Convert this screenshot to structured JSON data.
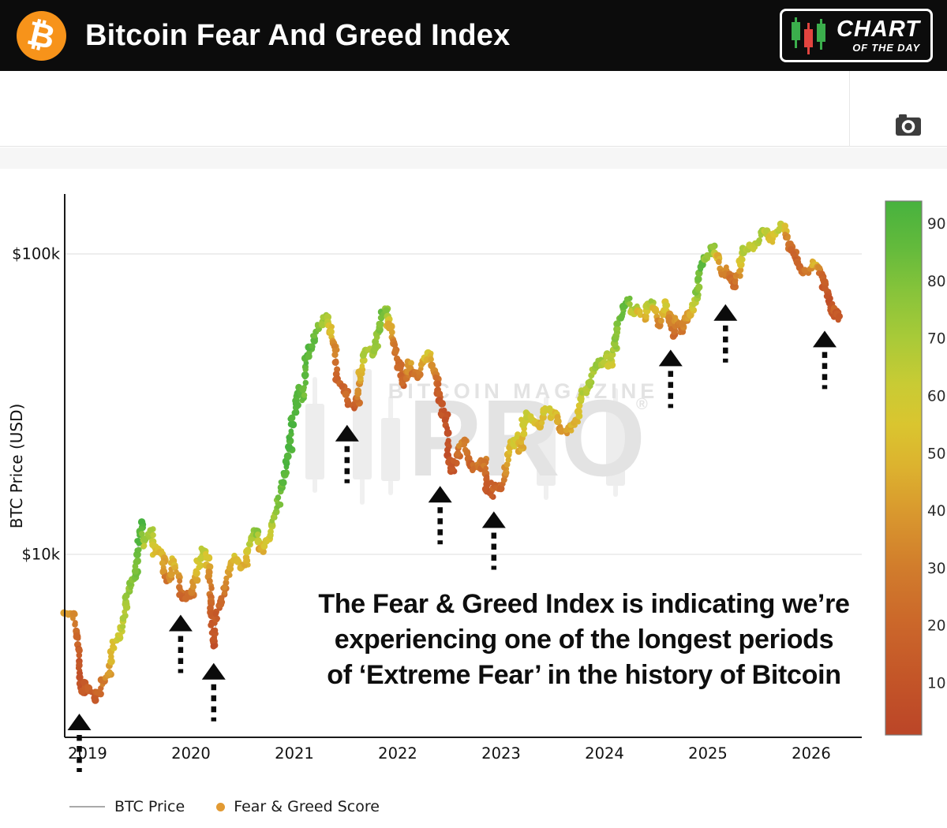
{
  "header": {
    "logo_symbol": "₿",
    "title": "Bitcoin Fear And Greed Index",
    "badge": {
      "line1": "CHART",
      "line2": "OF THE DAY"
    }
  },
  "colors": {
    "bitcoin_orange": "#f7931a",
    "header_bg": "#0c0c0c",
    "badge_candle_green": "#3bae4c",
    "badge_candle_red": "#e2443f",
    "arrow_black": "#0b0b0b",
    "axis": "#1a1a1a",
    "grid": "#e9e9e9",
    "price_line": "#b5b5b5",
    "watermark": "#e3e3e3",
    "camera_icon": "#3d3d3d"
  },
  "chart_data": {
    "type": "scatter",
    "title": "",
    "ylabel": "BTC Price (USD)",
    "yscale": "log",
    "grid": true,
    "y_ticks": [
      {
        "label": "$100k",
        "value": 100
      },
      {
        "label": "$10k",
        "value": 10
      }
    ],
    "x_ticks": [
      "2019",
      "2020",
      "2021",
      "2022",
      "2023",
      "2024",
      "2025",
      "2026"
    ],
    "x_range_years": [
      2018.78,
      2026.49
    ],
    "series_name": "BTC Price colored by Fear & Greed Score",
    "price_unit": "thousand USD",
    "points": [
      [
        2018.78,
        6.45,
        45
      ],
      [
        2018.82,
        6.4,
        42
      ],
      [
        2018.86,
        6.3,
        38
      ],
      [
        2018.89,
        5.5,
        20
      ],
      [
        2018.92,
        4.2,
        10
      ],
      [
        2018.95,
        3.45,
        9
      ],
      [
        2018.98,
        3.75,
        16
      ],
      [
        2019.02,
        3.55,
        18
      ],
      [
        2019.06,
        3.35,
        13
      ],
      [
        2019.1,
        3.5,
        22
      ],
      [
        2019.15,
        3.85,
        30
      ],
      [
        2019.2,
        3.95,
        38
      ],
      [
        2019.25,
        5.05,
        55
      ],
      [
        2019.3,
        5.3,
        60
      ],
      [
        2019.34,
        5.75,
        64
      ],
      [
        2019.38,
        7.2,
        72
      ],
      [
        2019.42,
        7.95,
        76
      ],
      [
        2019.46,
        8.6,
        80
      ],
      [
        2019.49,
        10.8,
        88
      ],
      [
        2019.52,
        12.8,
        92
      ],
      [
        2019.55,
        10.8,
        68
      ],
      [
        2019.58,
        11.6,
        72
      ],
      [
        2019.62,
        11.9,
        70
      ],
      [
        2019.65,
        10.1,
        52
      ],
      [
        2019.69,
        10.4,
        55
      ],
      [
        2019.73,
        9.6,
        44
      ],
      [
        2019.76,
        8.2,
        28
      ],
      [
        2019.8,
        8.35,
        35
      ],
      [
        2019.83,
        9.5,
        52
      ],
      [
        2019.87,
        8.6,
        40
      ],
      [
        2019.9,
        7.4,
        24
      ],
      [
        2019.93,
        7.15,
        20
      ],
      [
        2019.97,
        7.25,
        24
      ],
      [
        2020.0,
        7.2,
        26
      ],
      [
        2020.04,
        8.3,
        45
      ],
      [
        2020.08,
        9.4,
        60
      ],
      [
        2020.12,
        10.2,
        62
      ],
      [
        2020.15,
        9.6,
        55
      ],
      [
        2020.18,
        8.7,
        40
      ],
      [
        2020.2,
        6.2,
        12
      ],
      [
        2020.22,
        5.0,
        8
      ],
      [
        2020.25,
        6.4,
        14
      ],
      [
        2020.29,
        6.9,
        20
      ],
      [
        2020.33,
        7.6,
        28
      ],
      [
        2020.37,
        8.9,
        45
      ],
      [
        2020.41,
        9.7,
        54
      ],
      [
        2020.45,
        9.4,
        50
      ],
      [
        2020.49,
        9.15,
        44
      ],
      [
        2020.53,
        9.25,
        46
      ],
      [
        2020.57,
        11.0,
        66
      ],
      [
        2020.61,
        11.7,
        74
      ],
      [
        2020.64,
        11.9,
        76
      ],
      [
        2020.68,
        10.4,
        45
      ],
      [
        2020.72,
        10.75,
        52
      ],
      [
        2020.76,
        11.6,
        62
      ],
      [
        2020.8,
        13.1,
        72
      ],
      [
        2020.84,
        15.0,
        80
      ],
      [
        2020.88,
        17.0,
        86
      ],
      [
        2020.91,
        18.8,
        90
      ],
      [
        2020.95,
        22.8,
        93
      ],
      [
        2020.98,
        27.5,
        94
      ],
      [
        2021.02,
        32.0,
        93
      ],
      [
        2021.05,
        35.5,
        90
      ],
      [
        2021.08,
        33.0,
        84
      ],
      [
        2021.12,
        45.0,
        89
      ],
      [
        2021.15,
        48.5,
        90
      ],
      [
        2021.19,
        52.0,
        86
      ],
      [
        2021.23,
        57.0,
        80
      ],
      [
        2021.27,
        58.5,
        73
      ],
      [
        2021.3,
        62.5,
        74
      ],
      [
        2021.33,
        59.5,
        62
      ],
      [
        2021.36,
        55.0,
        50
      ],
      [
        2021.39,
        49.0,
        35
      ],
      [
        2021.42,
        38.0,
        18
      ],
      [
        2021.46,
        36.0,
        20
      ],
      [
        2021.5,
        34.0,
        22
      ],
      [
        2021.54,
        32.0,
        18
      ],
      [
        2021.58,
        31.0,
        15
      ],
      [
        2021.61,
        32.5,
        24
      ],
      [
        2021.64,
        40.0,
        50
      ],
      [
        2021.67,
        46.0,
        68
      ],
      [
        2021.71,
        47.5,
        72
      ],
      [
        2021.75,
        47.0,
        70
      ],
      [
        2021.79,
        49.5,
        74
      ],
      [
        2021.82,
        57.0,
        80
      ],
      [
        2021.86,
        62.5,
        82
      ],
      [
        2021.89,
        64.5,
        76
      ],
      [
        2021.92,
        58.0,
        45
      ],
      [
        2021.95,
        50.5,
        30
      ],
      [
        2021.98,
        47.0,
        26
      ],
      [
        2022.02,
        42.5,
        22
      ],
      [
        2022.05,
        37.0,
        19
      ],
      [
        2022.09,
        40.0,
        30
      ],
      [
        2022.12,
        43.5,
        40
      ],
      [
        2022.16,
        39.5,
        26
      ],
      [
        2022.2,
        39.0,
        28
      ],
      [
        2022.24,
        43.0,
        45
      ],
      [
        2022.28,
        46.5,
        55
      ],
      [
        2022.31,
        45.5,
        50
      ],
      [
        2022.34,
        41.0,
        32
      ],
      [
        2022.37,
        38.5,
        26
      ],
      [
        2022.4,
        34.5,
        15
      ],
      [
        2022.43,
        29.5,
        10
      ],
      [
        2022.46,
        29.8,
        12
      ],
      [
        2022.49,
        21.5,
        8
      ],
      [
        2022.52,
        19.0,
        9
      ],
      [
        2022.55,
        20.5,
        14
      ],
      [
        2022.58,
        21.8,
        22
      ],
      [
        2022.61,
        23.5,
        32
      ],
      [
        2022.64,
        23.8,
        33
      ],
      [
        2022.67,
        21.5,
        24
      ],
      [
        2022.7,
        19.8,
        20
      ],
      [
        2022.74,
        19.5,
        22
      ],
      [
        2022.78,
        20.2,
        28
      ],
      [
        2022.81,
        19.5,
        26
      ],
      [
        2022.84,
        20.5,
        30
      ],
      [
        2022.87,
        16.5,
        10
      ],
      [
        2022.9,
        15.8,
        12
      ],
      [
        2022.93,
        16.9,
        18
      ],
      [
        2022.97,
        16.6,
        20
      ],
      [
        2023.0,
        16.7,
        22
      ],
      [
        2023.04,
        19.0,
        38
      ],
      [
        2023.08,
        22.8,
        52
      ],
      [
        2023.11,
        23.2,
        55
      ],
      [
        2023.15,
        24.6,
        58
      ],
      [
        2023.19,
        22.4,
        44
      ],
      [
        2023.22,
        27.5,
        60
      ],
      [
        2023.26,
        29.0,
        62
      ],
      [
        2023.3,
        28.0,
        56
      ],
      [
        2023.34,
        27.5,
        52
      ],
      [
        2023.38,
        26.7,
        48
      ],
      [
        2023.42,
        30.4,
        60
      ],
      [
        2023.46,
        30.2,
        58
      ],
      [
        2023.5,
        29.3,
        54
      ],
      [
        2023.54,
        29.2,
        52
      ],
      [
        2023.58,
        26.1,
        38
      ],
      [
        2023.62,
        25.9,
        40
      ],
      [
        2023.66,
        26.5,
        44
      ],
      [
        2023.7,
        27.4,
        47
      ],
      [
        2023.74,
        28.2,
        50
      ],
      [
        2023.78,
        34.2,
        66
      ],
      [
        2023.82,
        35.0,
        68
      ],
      [
        2023.86,
        37.2,
        70
      ],
      [
        2023.9,
        42.0,
        72
      ],
      [
        2023.94,
        43.8,
        72
      ],
      [
        2023.98,
        42.6,
        68
      ],
      [
        2024.02,
        46.5,
        74
      ],
      [
        2024.05,
        43.0,
        58
      ],
      [
        2024.09,
        48.0,
        72
      ],
      [
        2024.13,
        57.0,
        80
      ],
      [
        2024.16,
        62.0,
        82
      ],
      [
        2024.2,
        68.5,
        86
      ],
      [
        2024.23,
        70.5,
        82
      ],
      [
        2024.27,
        64.5,
        62
      ],
      [
        2024.31,
        66.5,
        68
      ],
      [
        2024.34,
        63.5,
        52
      ],
      [
        2024.38,
        61.0,
        45
      ],
      [
        2024.42,
        68.0,
        66
      ],
      [
        2024.45,
        69.5,
        70
      ],
      [
        2024.49,
        64.5,
        50
      ],
      [
        2024.53,
        58.5,
        35
      ],
      [
        2024.57,
        63.5,
        48
      ],
      [
        2024.6,
        67.5,
        58
      ],
      [
        2024.63,
        61.5,
        35
      ],
      [
        2024.66,
        54.5,
        22
      ],
      [
        2024.69,
        60.5,
        38
      ],
      [
        2024.72,
        58.5,
        32
      ],
      [
        2024.75,
        55.0,
        26
      ],
      [
        2024.78,
        59.5,
        35
      ],
      [
        2024.81,
        62.5,
        42
      ],
      [
        2024.84,
        63.0,
        45
      ],
      [
        2024.87,
        68.5,
        62
      ],
      [
        2024.9,
        76.0,
        78
      ],
      [
        2024.93,
        91.0,
        88
      ],
      [
        2024.96,
        98.0,
        84
      ],
      [
        2024.99,
        95.5,
        72
      ],
      [
        2025.02,
        102.5,
        76
      ],
      [
        2025.05,
        104.5,
        74
      ],
      [
        2025.08,
        97.5,
        52
      ],
      [
        2025.11,
        96.5,
        48
      ],
      [
        2025.14,
        85.0,
        28
      ],
      [
        2025.17,
        88.0,
        35
      ],
      [
        2025.2,
        84.5,
        27
      ],
      [
        2025.23,
        82.5,
        25
      ],
      [
        2025.26,
        79.0,
        22
      ],
      [
        2025.29,
        85.0,
        35
      ],
      [
        2025.32,
        94.5,
        55
      ],
      [
        2025.35,
        103.0,
        68
      ],
      [
        2025.38,
        104.0,
        66
      ],
      [
        2025.41,
        106.0,
        65
      ],
      [
        2025.44,
        105.0,
        62
      ],
      [
        2025.47,
        108.5,
        66
      ],
      [
        2025.5,
        110.0,
        68
      ],
      [
        2025.53,
        118.0,
        72
      ],
      [
        2025.56,
        117.5,
        65
      ],
      [
        2025.59,
        113.5,
        54
      ],
      [
        2025.62,
        112.0,
        52
      ],
      [
        2025.65,
        116.0,
        58
      ],
      [
        2025.68,
        121.5,
        65
      ],
      [
        2025.71,
        124.0,
        62
      ],
      [
        2025.74,
        122.5,
        55
      ],
      [
        2025.77,
        112.0,
        32
      ],
      [
        2025.8,
        106.5,
        25
      ],
      [
        2025.83,
        101.5,
        22
      ],
      [
        2025.86,
        95.0,
        18
      ],
      [
        2025.89,
        91.0,
        20
      ],
      [
        2025.92,
        88.0,
        24
      ],
      [
        2025.95,
        87.5,
        28
      ],
      [
        2025.98,
        90.5,
        38
      ],
      [
        2026.01,
        94.0,
        48
      ],
      [
        2026.04,
        93.5,
        50
      ],
      [
        2026.07,
        89.0,
        32
      ],
      [
        2026.1,
        84.5,
        22
      ],
      [
        2026.13,
        78.5,
        15
      ],
      [
        2026.16,
        72.5,
        11
      ],
      [
        2026.19,
        66.5,
        10
      ],
      [
        2026.21,
        62.5,
        12
      ],
      [
        2026.23,
        65.5,
        16
      ],
      [
        2026.25,
        63.0,
        11
      ],
      [
        2026.27,
        61.0,
        9
      ]
    ],
    "colorbar": {
      "vmin": 1,
      "vmax": 94,
      "ticks": [
        90,
        80,
        70,
        60,
        50,
        40,
        30,
        20,
        10
      ],
      "stops": [
        {
          "v": 2,
          "c": "#bc4728"
        },
        {
          "v": 10,
          "c": "#c35428"
        },
        {
          "v": 20,
          "c": "#cb662a"
        },
        {
          "v": 30,
          "c": "#d17c2c"
        },
        {
          "v": 40,
          "c": "#d9992e"
        },
        {
          "v": 48,
          "c": "#dcb32f"
        },
        {
          "v": 55,
          "c": "#dac52f"
        },
        {
          "v": 62,
          "c": "#c9cb34"
        },
        {
          "v": 70,
          "c": "#a9ca38"
        },
        {
          "v": 78,
          "c": "#88c43a"
        },
        {
          "v": 86,
          "c": "#63ba3c"
        },
        {
          "v": 94,
          "c": "#47b23e"
        }
      ]
    },
    "arrows": [
      {
        "t": 2018.92,
        "price": 2.95
      },
      {
        "t": 2019.9,
        "price": 6.3
      },
      {
        "t": 2020.22,
        "price": 4.35
      },
      {
        "t": 2021.51,
        "price": 27.0
      },
      {
        "t": 2022.41,
        "price": 16.9
      },
      {
        "t": 2022.93,
        "price": 13.9
      },
      {
        "t": 2024.64,
        "price": 48.0
      },
      {
        "t": 2025.17,
        "price": 68.0
      },
      {
        "t": 2026.13,
        "price": 55.5
      }
    ],
    "annotation": {
      "lines": [
        "The Fear & Greed Index is indicating we’re",
        "experiencing one of the longest periods",
        "of ‘Extreme Fear’ in the history of Bitcoin"
      ]
    },
    "legend": [
      {
        "label": "BTC Price",
        "swatch": "line",
        "color": "#a9a9a9"
      },
      {
        "label": "Fear & Greed Score",
        "swatch": "dot",
        "color": "#e29a33"
      }
    ],
    "watermark": {
      "line1": "BITCOIN MAGAZINE",
      "line2": "PRO",
      "reg": "®"
    }
  }
}
